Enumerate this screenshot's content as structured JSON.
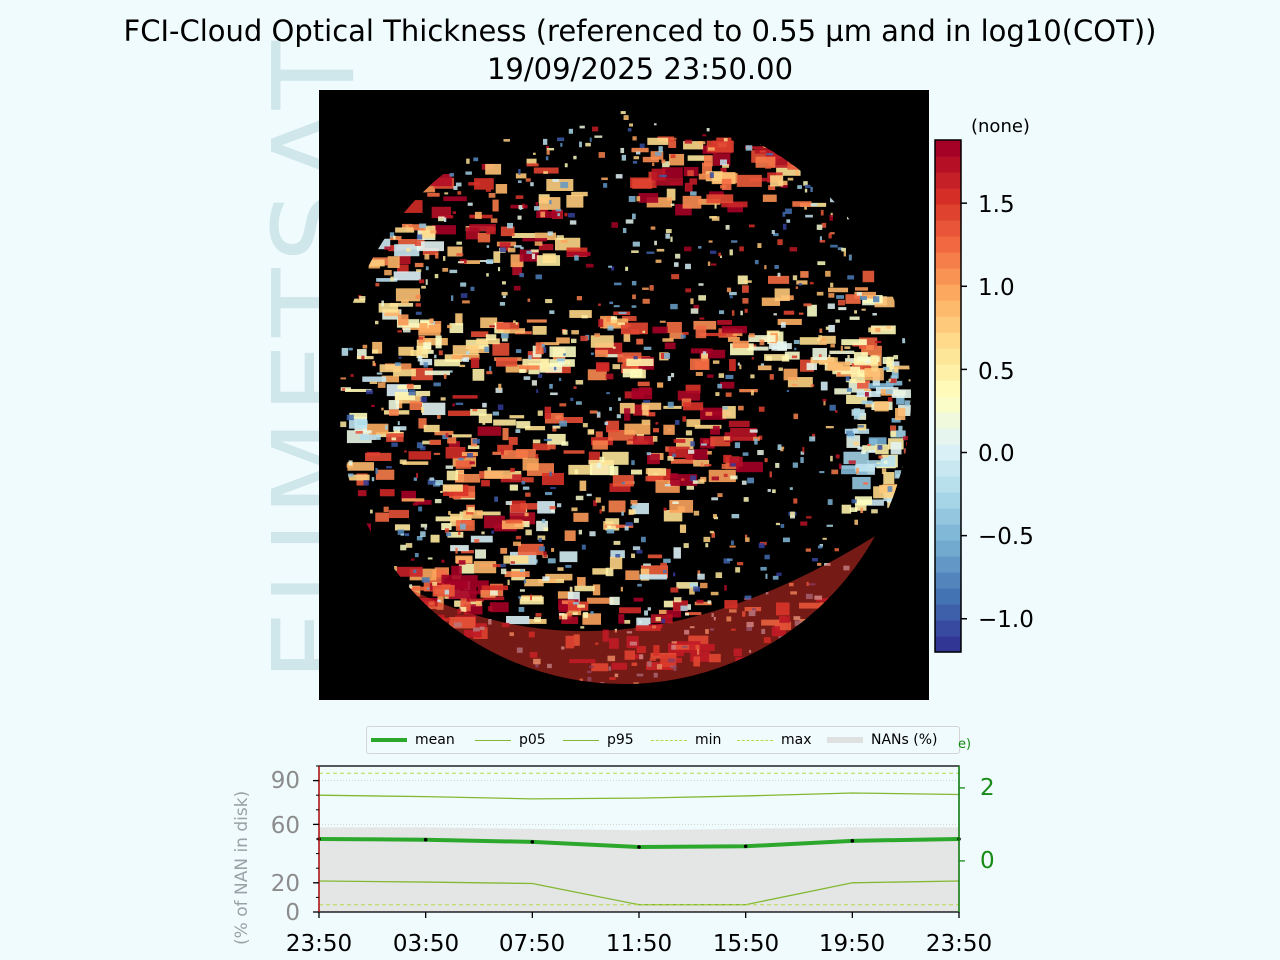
{
  "title": {
    "line1": "FCI-Cloud Optical Thickness (referenced to 0.55 µm and in log10(COT))",
    "line2": "19/09/2025 23:50.00"
  },
  "watermark": "EUMETSAT",
  "colorbar": {
    "unit_label": "(none)",
    "range": [
      -1.2,
      1.88
    ],
    "ticks": [
      "1.5",
      "1.0",
      "0.5",
      "0.0",
      "−0.5",
      "−1.0"
    ],
    "tick_values": [
      1.5,
      1.0,
      0.5,
      0.0,
      -0.5,
      -1.0
    ],
    "colormap": "RdYlBu_r"
  },
  "timeseries": {
    "legend": {
      "mean": "mean",
      "p05": "p05",
      "p95": "p95",
      "min": "min",
      "max": "max",
      "nans": "NANs (%)"
    },
    "partial_label": "e)",
    "left_axis_label": "(% of NAN in disk)",
    "left_ticks": [
      "90",
      "60",
      "20",
      "0"
    ],
    "left_tick_values": [
      90,
      60,
      20,
      0
    ],
    "right_ticks": [
      "2",
      "0"
    ],
    "right_tick_values": [
      2,
      0
    ],
    "x_ticks": [
      "23:50",
      "03:50",
      "07:50",
      "11:50",
      "15:50",
      "19:50",
      "23:50"
    ],
    "colors": {
      "mean": "#2ca82c",
      "p05": "#84b832",
      "p95": "#84b832",
      "minmax": "#b6d94a",
      "nans_fill": "#e4e6e6",
      "right_axis": "#178a17",
      "left_axis": "#c02020"
    }
  },
  "chart_data": {
    "type": "line",
    "title": "FCI-Cloud Optical Thickness (referenced to 0.55 µm and in log10(COT))",
    "subtitle": "19/09/2025 23:50.00",
    "x": [
      "23:50",
      "03:50",
      "07:50",
      "11:50",
      "15:50",
      "19:50",
      "23:50"
    ],
    "ylabel": "(% of NAN in disk)",
    "ylim_left": [
      0,
      100
    ],
    "ylim_right": [
      -1.4,
      2.6
    ],
    "series": [
      {
        "name": "mean",
        "axis": "right",
        "values": [
          0.6,
          0.58,
          0.52,
          0.38,
          0.4,
          0.55,
          0.6
        ]
      },
      {
        "name": "p05",
        "axis": "right",
        "values": [
          -0.55,
          -0.58,
          -0.62,
          -1.2,
          -1.2,
          -0.6,
          -0.55
        ]
      },
      {
        "name": "p95",
        "axis": "right",
        "values": [
          1.8,
          1.76,
          1.7,
          1.72,
          1.78,
          1.86,
          1.82
        ]
      },
      {
        "name": "min",
        "axis": "right",
        "values": [
          -1.2,
          -1.2,
          -1.2,
          -1.2,
          -1.2,
          -1.2,
          -1.2
        ]
      },
      {
        "name": "max",
        "axis": "right",
        "values": [
          2.4,
          2.4,
          2.4,
          2.4,
          2.4,
          2.4,
          2.4
        ]
      },
      {
        "name": "NANs (%)",
        "axis": "left",
        "values": [
          58,
          58,
          57,
          56,
          57,
          58,
          58
        ]
      }
    ]
  }
}
